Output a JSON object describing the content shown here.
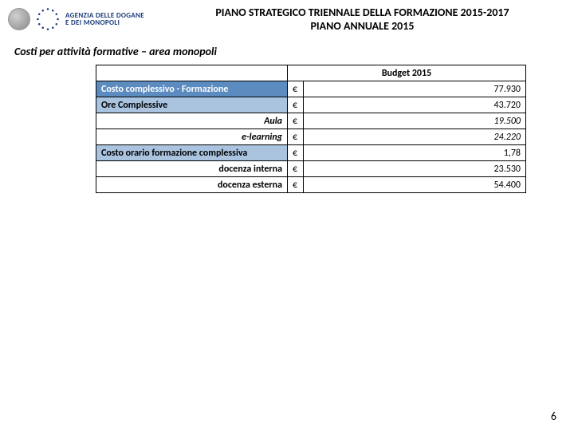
{
  "header": {
    "agency_line1": "AGENZIA DELLE DOGANE",
    "agency_line2": "E DEI MONOPOLI",
    "title_line1": "PIANO STRATEGICO TRIENNALE DELLA FORMAZIONE 2015-2017",
    "title_line2": "PIANO ANNUALE 2015"
  },
  "subtitle": "Costi per attività formative – area monopoli",
  "table": {
    "budget_header": "Budget 2015",
    "currency_symbol": "€",
    "rows": [
      {
        "style": "blue",
        "label": "Costo complessivo - Formazione",
        "value": "77.930"
      },
      {
        "style": "lblue",
        "label": "Ore  Complessive",
        "value": "43.720"
      },
      {
        "style": "white-italic",
        "label": "Aula",
        "value": "19.500"
      },
      {
        "style": "white-italic",
        "label": "e-learning",
        "value": "24.220"
      },
      {
        "style": "lblue",
        "label": "Costo orario formazione complessiva",
        "value": "1,78"
      },
      {
        "style": "white-plain",
        "label": "docenza interna",
        "value": "23.530"
      },
      {
        "style": "white-plain",
        "label": "docenza esterna",
        "value": "54.400"
      }
    ]
  },
  "page_number": "6",
  "colors": {
    "row_blue": "#5b8bbf",
    "row_lightblue": "#aac4e0",
    "border": "#000000",
    "agency_text": "#1a3a7a"
  }
}
